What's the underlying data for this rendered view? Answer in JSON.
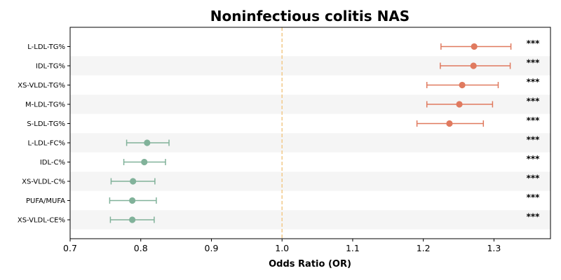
{
  "chart_data": {
    "type": "scatter",
    "subtype": "forest-plot",
    "title": "Noninfectious colitis NAS",
    "xlabel": "Odds Ratio (OR)",
    "ylabel": "",
    "xlim": [
      0.7,
      1.38
    ],
    "xticks": [
      0.7,
      0.8,
      0.9,
      1.0,
      1.1,
      1.2,
      1.3
    ],
    "xtick_labels": [
      "0.7",
      "0.8",
      "0.9",
      "1.0",
      "1.1",
      "1.2",
      "1.3"
    ],
    "reference_line": 1.0,
    "grid": false,
    "legend": "none",
    "colors": {
      "above_one": "#E07A5F",
      "below_one": "#81B29A",
      "reference": "#F2CC8F",
      "band": "#F5F5F5"
    },
    "rows": [
      {
        "label": "L-LDL-TG%",
        "or": 1.272,
        "ci_low": 1.225,
        "ci_high": 1.324,
        "sig": "***"
      },
      {
        "label": "IDL-TG%",
        "or": 1.271,
        "ci_low": 1.224,
        "ci_high": 1.323,
        "sig": "***"
      },
      {
        "label": "XS-VLDL-TG%",
        "or": 1.255,
        "ci_low": 1.205,
        "ci_high": 1.306,
        "sig": "***"
      },
      {
        "label": "M-LDL-TG%",
        "or": 1.251,
        "ci_low": 1.205,
        "ci_high": 1.298,
        "sig": "***"
      },
      {
        "label": "S-LDL-TG%",
        "or": 1.237,
        "ci_low": 1.191,
        "ci_high": 1.285,
        "sig": "***"
      },
      {
        "label": "L-LDL-FC%",
        "or": 0.809,
        "ci_low": 0.78,
        "ci_high": 0.84,
        "sig": "***"
      },
      {
        "label": "IDL-C%",
        "or": 0.805,
        "ci_low": 0.776,
        "ci_high": 0.835,
        "sig": "***"
      },
      {
        "label": "XS-VLDL-C%",
        "or": 0.789,
        "ci_low": 0.758,
        "ci_high": 0.82,
        "sig": "***"
      },
      {
        "label": "PUFA/MUFA",
        "or": 0.788,
        "ci_low": 0.756,
        "ci_high": 0.822,
        "sig": "***"
      },
      {
        "label": "XS-VLDL-CE%",
        "or": 0.788,
        "ci_low": 0.757,
        "ci_high": 0.819,
        "sig": "***"
      }
    ]
  }
}
